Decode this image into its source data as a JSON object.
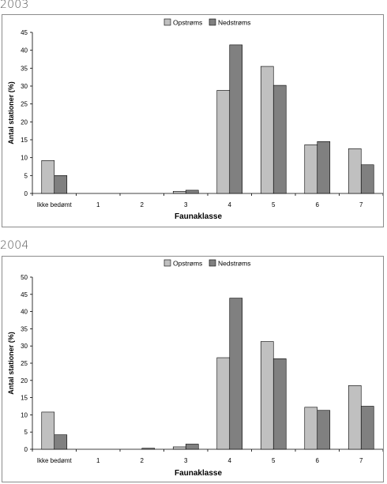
{
  "charts": [
    {
      "year_label": "2003",
      "chart_data": {
        "type": "bar",
        "categories": [
          "Ikke bedømt",
          "1",
          "2",
          "3",
          "4",
          "5",
          "6",
          "7"
        ],
        "series": [
          {
            "name": "Opstrøms",
            "values": [
              9.2,
              0,
              0,
              0.6,
              28.8,
              35.5,
              13.6,
              12.5
            ],
            "color": "#c0c0c0"
          },
          {
            "name": "Nedstrøms",
            "values": [
              5.0,
              0,
              0,
              0.9,
              41.5,
              30.2,
              14.5,
              8.0
            ],
            "color": "#808080"
          }
        ],
        "xlabel": "Faunaklasse",
        "ylabel": "Antal stationer (%)",
        "ylim": [
          0,
          45
        ],
        "yticks": [
          "0",
          "5",
          "10",
          "15",
          "20",
          "25",
          "30",
          "35",
          "40",
          "45"
        ],
        "grid": false,
        "legend": "top-center"
      }
    },
    {
      "year_label": "2004",
      "chart_data": {
        "type": "bar",
        "categories": [
          "Ikke bedømt",
          "1",
          "2",
          "3",
          "4",
          "5",
          "6",
          "7"
        ],
        "series": [
          {
            "name": "Opstrøms",
            "values": [
              10.8,
              0,
              0,
              0.7,
              26.6,
              31.3,
              12.2,
              18.5
            ],
            "color": "#c0c0c0"
          },
          {
            "name": "Nedstrøms",
            "values": [
              4.2,
              0,
              0.3,
              1.5,
              43.9,
              26.3,
              11.3,
              12.5
            ],
            "color": "#808080"
          }
        ],
        "xlabel": "Faunaklasse",
        "ylabel": "Antal stationer (%)",
        "ylim": [
          0,
          50
        ],
        "yticks": [
          "0",
          "5",
          "10",
          "15",
          "20",
          "25",
          "30",
          "35",
          "40",
          "45",
          "50"
        ],
        "grid": false,
        "legend": "top-center"
      }
    }
  ]
}
